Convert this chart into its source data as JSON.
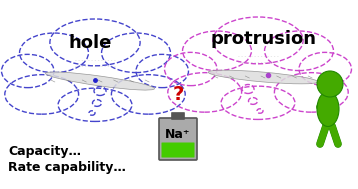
{
  "title": "",
  "background_color": "#ffffff",
  "hole_label": "hole",
  "protrusion_label": "protrusion",
  "na_label": "Na⁺",
  "question_mark": "?",
  "capacity_text": "Capacity…",
  "rate_text": "Rate capability…",
  "hole_cloud_color": "#4444cc",
  "protrusion_cloud_color": "#cc44cc",
  "question_color": "#cc0000",
  "na_text_color": "#000000",
  "capacity_color": "#000000",
  "hole_label_color": "#000000",
  "protrusion_label_color": "#000000",
  "green_figure_color": "#44aa00",
  "battery_green": "#44cc00",
  "battery_gray": "#aaaaaa",
  "battery_outline": "#555555"
}
